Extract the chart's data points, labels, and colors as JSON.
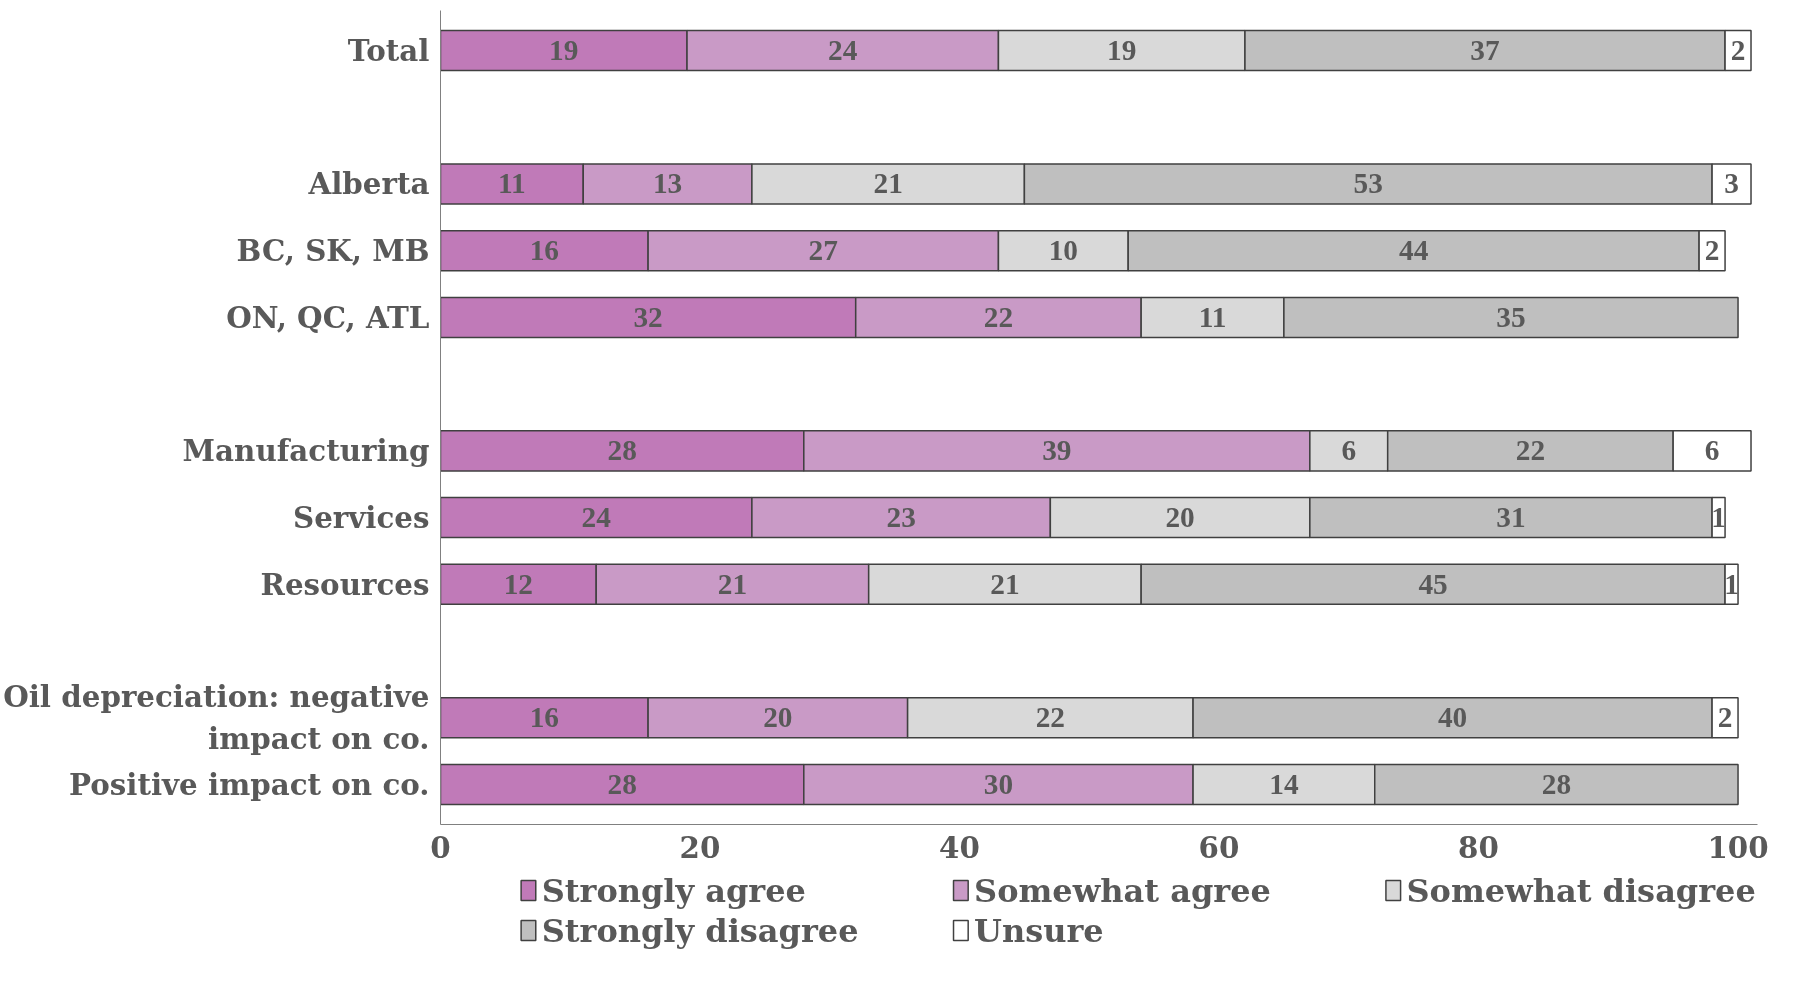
{
  "chart_data": {
    "type": "bar",
    "orientation": "horizontal",
    "stacked": true,
    "data_labels": true,
    "grid": false,
    "legend": "bottom",
    "categories": [
      "Total",
      null,
      "Alberta",
      "BC, SK, MB",
      "ON, QC, ATL",
      null,
      "Manufacturing",
      "Services",
      "Resources",
      null,
      "Oil depreciation: negative\nimpact on co.",
      "Positive impact on co."
    ],
    "series": [
      {
        "name": "Strongly agree",
        "color": "#c07ab8",
        "values": [
          19,
          null,
          11,
          16,
          32,
          null,
          28,
          24,
          12,
          null,
          16,
          28
        ]
      },
      {
        "name": "Somewhat agree",
        "color": "#c99ac6",
        "values": [
          24,
          null,
          13,
          27,
          22,
          null,
          39,
          23,
          21,
          null,
          20,
          30
        ]
      },
      {
        "name": "Somewhat disagree",
        "color": "#d9d9d9",
        "values": [
          19,
          null,
          21,
          10,
          11,
          null,
          6,
          20,
          21,
          null,
          22,
          14
        ]
      },
      {
        "name": "Strongly disagree",
        "color": "#bfbfbf",
        "values": [
          37,
          null,
          53,
          44,
          35,
          null,
          22,
          31,
          45,
          null,
          40,
          28
        ]
      },
      {
        "name": "Unsure",
        "color": "#ffffff",
        "values": [
          2,
          null,
          3,
          2,
          null,
          null,
          6,
          1,
          1,
          null,
          2,
          null
        ]
      }
    ],
    "xlim": [
      0,
      101.5
    ],
    "xticks": [
      0,
      20,
      40,
      60,
      80,
      100
    ]
  }
}
